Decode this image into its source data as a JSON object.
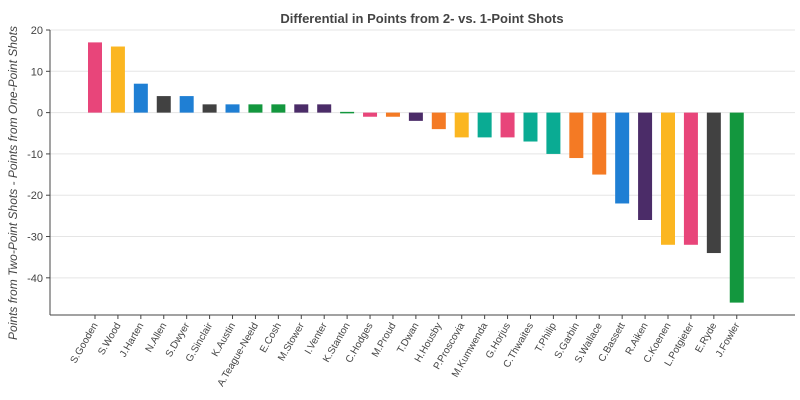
{
  "chart_data": {
    "type": "bar",
    "title": "Differential in Points from 2- vs. 1-Point Shots",
    "xlabel": "",
    "ylabel": "Points from Two-Point Shots - Points from One-Point Shots",
    "ylim": [
      -49,
      20
    ],
    "yticks": [
      20,
      10,
      0,
      -10,
      -20,
      -30,
      -40
    ],
    "grid": "horizontal",
    "categories": [
      "S.Gooden",
      "S.Wood",
      "J.Harten",
      "N.Allen",
      "S.Dwyer",
      "G.Sinclair",
      "K.Austin",
      "A.Teague-Neeld",
      "E.Cosh",
      "M.Stower",
      "I.Venter",
      "K.Stanton",
      "C.Hodges",
      "M.Proud",
      "T.Dwan",
      "H.Housby",
      "P.Proscovia",
      "M.Kumwenda",
      "G.Horjus",
      "C.Thwaites",
      "T.Philip",
      "S.Garbin",
      "S.Wallace",
      "C.Bassett",
      "R.Aiken",
      "C.Koenen",
      "L.Potgieter",
      "E.Ryde",
      "J.Fowler"
    ],
    "values": [
      17,
      16,
      7,
      4,
      4,
      2,
      2,
      2,
      2,
      2,
      2,
      0,
      -1,
      -1,
      -2,
      -4,
      -6,
      -6,
      -6,
      -7,
      -10,
      -11,
      -15,
      -22,
      -26,
      -32,
      -32,
      -34,
      -46
    ],
    "colors": [
      "#e8457a",
      "#fbb621",
      "#1f7fd4",
      "#414141",
      "#1f7fd4",
      "#414141",
      "#1f7fd4",
      "#13973e",
      "#13973e",
      "#4b2c68",
      "#4b2c68",
      "#13973e",
      "#e8457a",
      "#f47a24",
      "#4b2c68",
      "#f47a24",
      "#fbb621",
      "#0aab93",
      "#e8457a",
      "#0aab93",
      "#0aab93",
      "#f47a24",
      "#f47a24",
      "#1f7fd4",
      "#4b2c68",
      "#fbb621",
      "#e8457a",
      "#414141",
      "#13973e"
    ]
  }
}
